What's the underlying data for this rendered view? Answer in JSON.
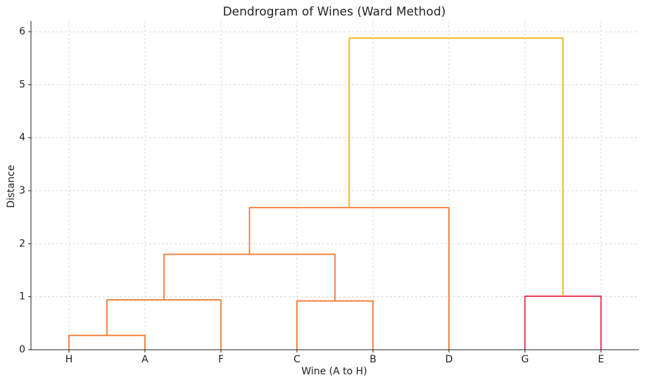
{
  "chart_data": {
    "type": "dendrogram",
    "title": "Dendrogram of Wines (Ward Method)",
    "xlabel": "Wine (A to H)",
    "ylabel": "Distance",
    "categories": [
      "H",
      "A",
      "F",
      "C",
      "B",
      "D",
      "G",
      "E"
    ],
    "links": [
      {
        "left": 0,
        "right": 1,
        "height": 0.27,
        "color": "#f07c32"
      },
      {
        "left": 8,
        "right": 2,
        "height": 0.94,
        "color": "#f07c32"
      },
      {
        "left": 3,
        "right": 4,
        "height": 0.92,
        "color": "#f07c32"
      },
      {
        "left": 9,
        "right": 10,
        "height": 1.8,
        "color": "#f07c32"
      },
      {
        "left": 11,
        "right": 5,
        "height": 2.68,
        "color": "#f07c32"
      },
      {
        "left": 6,
        "right": 7,
        "height": 1.01,
        "color": "#e8334f"
      },
      {
        "left": 12,
        "right": 13,
        "height": 5.88,
        "color": "#f5b016"
      }
    ],
    "ylim": [
      0,
      6.2
    ],
    "yticks": [
      0,
      1,
      2,
      3,
      4,
      5,
      6
    ],
    "grid": true
  }
}
